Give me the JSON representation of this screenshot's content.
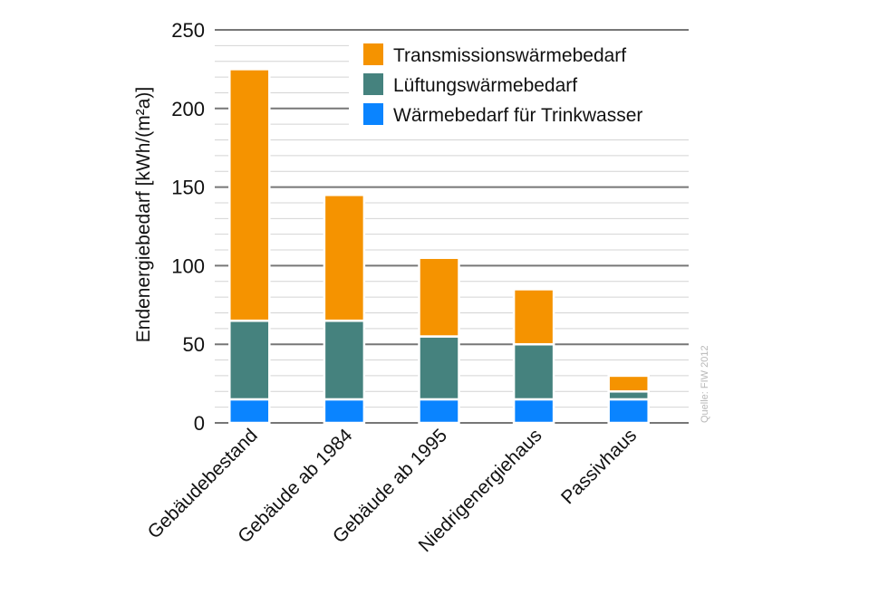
{
  "chart_data": {
    "type": "bar",
    "stacked": true,
    "title": "",
    "xlabel": "",
    "ylabel": "Endenergiebedarf  [kWh/(m²a)]",
    "ylim": [
      0,
      250
    ],
    "yticks": [
      0,
      50,
      100,
      150,
      200,
      250
    ],
    "minor_grid_step": 10,
    "grid": true,
    "legend_position": "top-right",
    "categories": [
      "Gebäudebestand",
      "Gebäude ab 1984",
      "Gebäude ab 1995",
      "Niedrigenergiehaus",
      "Passivhaus"
    ],
    "series": [
      {
        "name": "Wärmebedarf für Trinkwasser",
        "color": "#0a84ff",
        "values": [
          15,
          15,
          15,
          15,
          15
        ]
      },
      {
        "name": "Lüftungswärmebedarf",
        "color": "#45827e",
        "values": [
          50,
          50,
          40,
          35,
          5
        ]
      },
      {
        "name": "Transmissionswärmebedarf",
        "color": "#f59300",
        "values": [
          160,
          80,
          50,
          35,
          10
        ]
      }
    ],
    "legend_order": [
      2,
      1,
      0
    ],
    "source": "Quelle: FIW 2012"
  }
}
